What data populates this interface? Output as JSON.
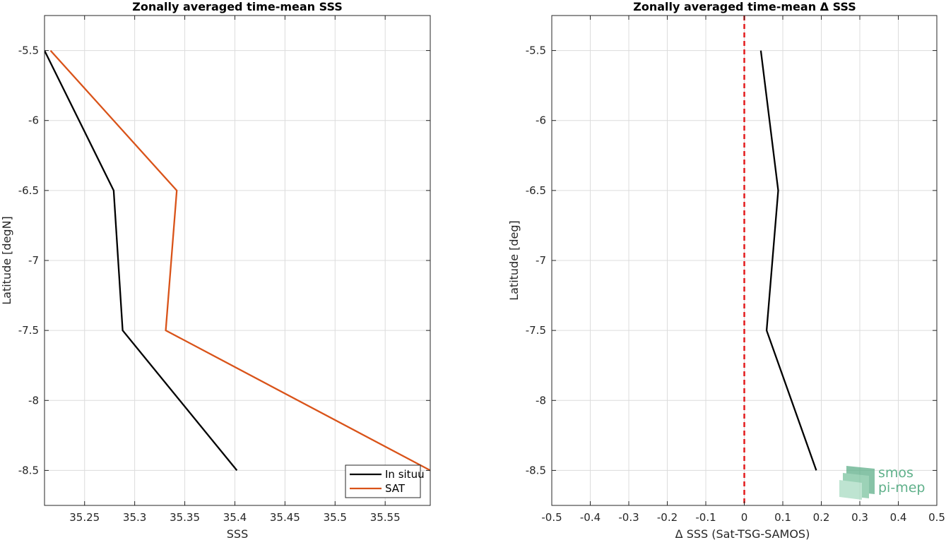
{
  "chart_data": [
    {
      "type": "line",
      "title": "Zonally averaged time-mean SSS",
      "xlabel": "SSS",
      "ylabel": "Latitude [degN]",
      "xlim": [
        35.21,
        35.595
      ],
      "ylim": [
        -8.75,
        -5.25
      ],
      "xticks": [
        35.25,
        35.3,
        35.35,
        35.4,
        35.45,
        35.5,
        35.55
      ],
      "xtick_labels": [
        "35.25",
        "35.3",
        "35.35",
        "35.4",
        "35.45",
        "35.5",
        "35.55"
      ],
      "yticks": [
        -5.5,
        -6,
        -6.5,
        -7,
        -7.5,
        -8,
        -8.5
      ],
      "ytick_labels": [
        "-5.5",
        "-6",
        "-6.5",
        "-7",
        "-7.5",
        "-8",
        "-8.5"
      ],
      "grid": true,
      "legend_position": "bottom-right",
      "series": [
        {
          "name": "In situu",
          "color": "#000000",
          "x": [
            35.21,
            35.279,
            35.288,
            35.402
          ],
          "y": [
            -5.5,
            -6.5,
            -7.5,
            -8.5
          ]
        },
        {
          "name": "SAT",
          "color": "#d95319",
          "x": [
            35.216,
            35.342,
            35.331,
            35.595
          ],
          "y": [
            -5.5,
            -6.5,
            -7.5,
            -8.5
          ]
        }
      ]
    },
    {
      "type": "line",
      "title": "Zonally averaged time-mean Δ SSS",
      "xlabel": "Δ SSS (Sat-TSG-SAMOS)",
      "ylabel": "Latitude [deg]",
      "xlim": [
        -0.5,
        0.5
      ],
      "ylim": [
        -8.75,
        -5.25
      ],
      "xticks": [
        -0.5,
        -0.4,
        -0.3,
        -0.2,
        -0.1,
        0,
        0.1,
        0.2,
        0.3,
        0.4,
        0.5
      ],
      "xtick_labels": [
        "-0.5",
        "-0.4",
        "-0.3",
        "-0.2",
        "-0.1",
        "0",
        "0.1",
        "0.2",
        "0.3",
        "0.4",
        "0.5"
      ],
      "yticks": [
        -5.5,
        -6,
        -6.5,
        -7,
        -7.5,
        -8,
        -8.5
      ],
      "ytick_labels": [
        "-5.5",
        "-6",
        "-6.5",
        "-7",
        "-7.5",
        "-8",
        "-8.5"
      ],
      "grid": true,
      "reference_line": {
        "x": 0,
        "color": "#e31a1c",
        "style": "dashed"
      },
      "series": [
        {
          "color": "#000000",
          "x": [
            0.043,
            0.088,
            0.058,
            0.187
          ],
          "y": [
            -5.5,
            -6.5,
            -7.5,
            -8.5
          ]
        }
      ]
    }
  ],
  "logo": {
    "line1": "smos",
    "line2": "pi-mep",
    "color": "#5fb08a"
  }
}
